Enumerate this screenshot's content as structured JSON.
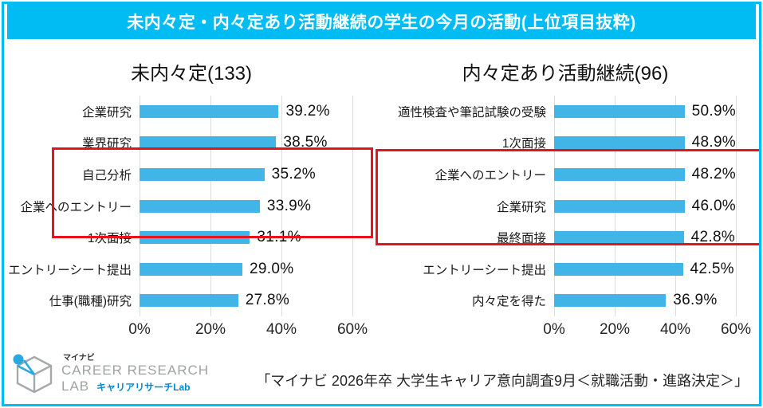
{
  "banner": {
    "title": "未内々定・内々定あり活動継続の学生の今月の活動(上位項目抜粋)"
  },
  "chart_data": [
    {
      "type": "bar",
      "orientation": "horizontal",
      "title": "未内々定(133)",
      "categories": [
        "企業研究",
        "業界研究",
        "自己分析",
        "企業へのエントリー",
        "1次面接",
        "エントリーシート提出",
        "仕事(職種)研究"
      ],
      "values": [
        39.2,
        38.5,
        35.2,
        33.9,
        31.1,
        29.0,
        27.8
      ],
      "value_labels": [
        "39.2%",
        "38.5%",
        "35.2%",
        "33.9%",
        "31.1%",
        "29.0%",
        "27.8%"
      ],
      "xlim": [
        0,
        60
      ],
      "xticks": [
        "0%",
        "20%",
        "40%",
        "60%"
      ],
      "grid": true,
      "highlight_top_n": 3,
      "bar_color": "#41b6e6",
      "highlight_box_color": "#e6131c"
    },
    {
      "type": "bar",
      "orientation": "horizontal",
      "title": "内々定あり活動継続(96)",
      "categories": [
        "適性検査や筆記試験の受験",
        "1次面接",
        "企業へのエントリー",
        "企業研究",
        "最終面接",
        "エントリーシート提出",
        "内々定を得た"
      ],
      "values": [
        50.9,
        48.9,
        48.2,
        46.0,
        42.8,
        42.5,
        36.9
      ],
      "value_labels": [
        "50.9%",
        "48.9%",
        "48.2%",
        "46.0%",
        "42.8%",
        "42.5%",
        "36.9%"
      ],
      "xlim": [
        0,
        60
      ],
      "xticks": [
        "0%",
        "20%",
        "40%",
        "60%"
      ],
      "grid": true,
      "highlight_top_n": 3,
      "bar_color": "#41b6e6",
      "highlight_box_color": "#e6131c"
    }
  ],
  "footer": {
    "logo": {
      "brand_jp": "マイナビ",
      "line1": "CAREER RESEARCH",
      "line2": "LAB",
      "line2_jp": "キャリアリサーチLab"
    },
    "source": "「マイナビ  2026年卒  大学生キャリア意向調査9月＜就職活動・進路決定＞」"
  },
  "colors": {
    "accent_cyan": "#00bcf2",
    "bar_blue": "#41b6e6",
    "highlight_red": "#e6131c",
    "gridline": "#dcdcdc"
  }
}
